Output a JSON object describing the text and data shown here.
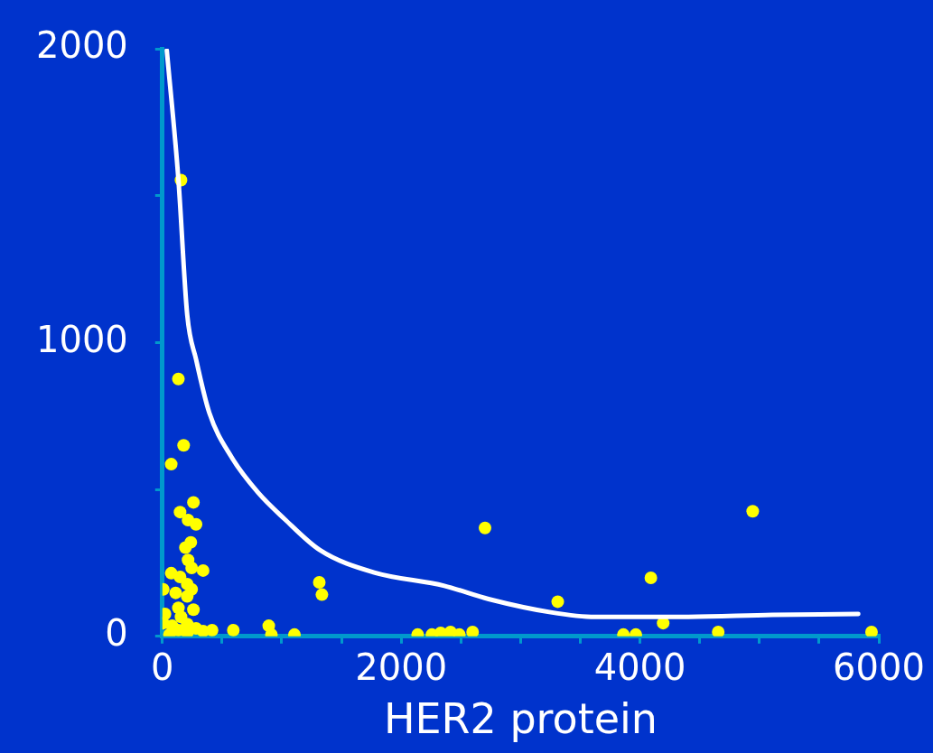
{
  "chart_data": {
    "type": "scatter",
    "xlabel": "HER2 protein",
    "xlim": [
      0,
      6000
    ],
    "ylim": [
      0,
      2000
    ],
    "xticks": [
      0,
      {
        "value": 500,
        "label": null
      },
      {
        "value": 1000,
        "label": null
      },
      {
        "value": 1500,
        "label": null
      },
      2000,
      {
        "value": 2500,
        "label": null
      },
      {
        "value": 3000,
        "label": null
      },
      {
        "value": 3500,
        "label": null
      },
      4000,
      {
        "value": 4500,
        "label": null
      },
      {
        "value": 5000,
        "label": null
      },
      {
        "value": 5500,
        "label": null
      },
      6000
    ],
    "yticks": [
      0,
      {
        "value": 500,
        "label": null
      },
      1000,
      {
        "value": 1500,
        "label": null
      },
      2000
    ],
    "grid": false,
    "legend": false,
    "marker": "circle",
    "series": [
      {
        "color": "#ffff00",
        "x": [
          156,
          134,
          178,
          74,
          260,
          148,
          215,
          282,
          2702,
          1314,
          1336,
          3311,
          4091,
          4944,
          4194,
          4655,
          5939,
          891,
          913,
          1106,
          594,
          416,
          2138,
          2257,
          2331,
          2413,
          2487,
          2598,
          3861,
          3965,
          238,
          193,
          215,
          245,
          341,
          74,
          148,
          7,
          208,
          245,
          111,
          208,
          134,
          260,
          22,
          156,
          7,
          82,
          208,
          134,
          59,
          282,
          341,
          208
        ],
        "values": [
          1553,
          876,
          650,
          586,
          456,
          423,
          396,
          381,
          369,
          184,
          142,
          118,
          199,
          426,
          45,
          15,
          15,
          36,
          6,
          6,
          21,
          21,
          6,
          6,
          12,
          15,
          6,
          15,
          6,
          6,
          320,
          302,
          260,
          233,
          224,
          215,
          202,
          160,
          178,
          160,
          148,
          136,
          97,
          91,
          76,
          66,
          45,
          36,
          42,
          21,
          6,
          27,
          18,
          12
        ]
      },
      {
        "type": "line",
        "color": "#ffffff",
        "marker": "none",
        "line_style": "solid",
        "x": [
          37,
          134,
          208,
          282,
          393,
          579,
          802,
          1024,
          1321,
          1767,
          2361,
          2732,
          3252,
          3623,
          4365,
          5108,
          5828
        ],
        "values": [
          1994,
          1556,
          1094,
          943,
          761,
          610,
          489,
          399,
          293,
          218,
          172,
          127,
          82,
          66,
          66,
          73,
          76
        ]
      }
    ]
  }
}
